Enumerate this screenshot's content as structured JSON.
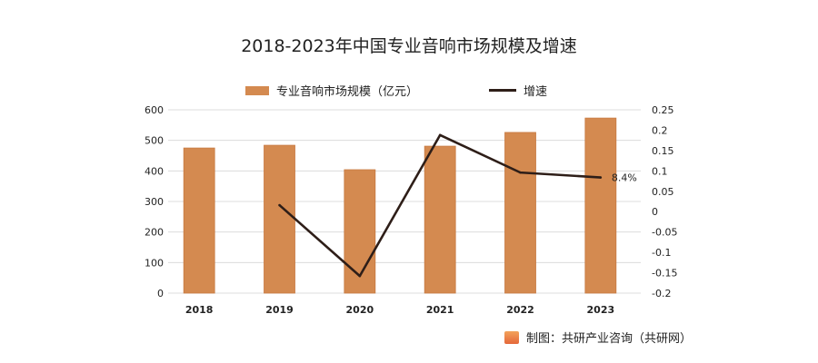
{
  "chart_data": {
    "type": "bar+line",
    "title": "2018-2023年中国专业音响市场规模及增速",
    "categories": [
      "2018",
      "2019",
      "2020",
      "2021",
      "2022",
      "2023"
    ],
    "series": [
      {
        "name": "专业音响市场规模（亿元）",
        "type": "bar",
        "axis": "left",
        "color": "#d48a50",
        "values": [
          475,
          484,
          404,
          481,
          526,
          573
        ]
      },
      {
        "name": "增速",
        "type": "line",
        "axis": "right",
        "color": "#2e1e18",
        "values": [
          null,
          0.016,
          -0.158,
          0.188,
          0.096,
          0.084
        ]
      }
    ],
    "left_axis": {
      "range": [
        0,
        600
      ],
      "ticks": [
        "0",
        "100",
        "200",
        "300",
        "400",
        "500",
        "600"
      ]
    },
    "right_axis": {
      "range": [
        -0.2,
        0.25
      ],
      "ticks": [
        "0.25",
        "0.2",
        "0.15",
        "0.1",
        "0.05",
        "0",
        "-0.05",
        "-0.1",
        "-0.15",
        "-0.2"
      ]
    },
    "annotation": "8.4%",
    "grid": true,
    "legend_placement": "top"
  },
  "source": "制图：共研产业咨询（共研网）"
}
